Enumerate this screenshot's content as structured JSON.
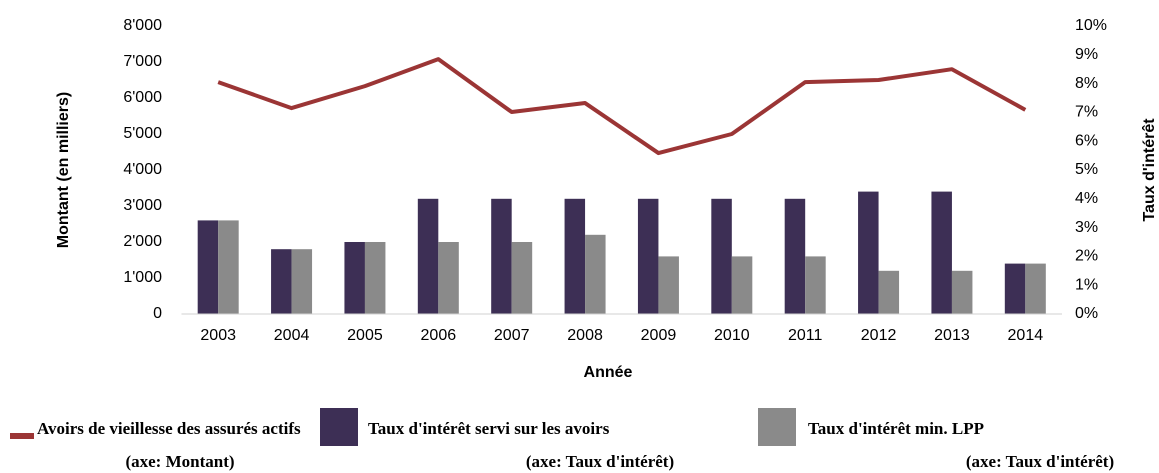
{
  "chart_data": {
    "type": "bar_line",
    "categories": [
      "2003",
      "2004",
      "2005",
      "2006",
      "2007",
      "2008",
      "2009",
      "2010",
      "2011",
      "2012",
      "2013",
      "2014"
    ],
    "series": [
      {
        "name": "Avoirs de vieillesse des assurés actifs",
        "legend_sub": "(axe: Montant)",
        "type": "line",
        "axis": "y",
        "color": "#9b3535",
        "values": [
          6440,
          5720,
          6330,
          7080,
          5610,
          5860,
          4470,
          5000,
          6440,
          6500,
          6800,
          5670
        ]
      },
      {
        "name": "Taux d'intérêt servi sur les avoirs",
        "legend_sub": "(axe: Taux d'intérêt)",
        "type": "bar",
        "axis": "y2",
        "color": "#3d2f55",
        "values": [
          3.25,
          2.25,
          2.5,
          4,
          4,
          4,
          4,
          4,
          4,
          4.25,
          4.25,
          1.75
        ]
      },
      {
        "name": "Taux d'intérêt min. LPP",
        "legend_sub": "(axe: Taux d'intérêt)",
        "type": "bar",
        "axis": "y2",
        "color": "#8a8a8a",
        "values": [
          3.25,
          2.25,
          2.5,
          2.5,
          2.5,
          2.75,
          2,
          2,
          2,
          1.5,
          1.5,
          1.75
        ]
      }
    ],
    "x_label": "Année",
    "y_label": "Montant  (en milliers)",
    "y2_label": "Taux d'intérêt",
    "ylim": [
      0,
      8000
    ],
    "yticks": [
      {
        "value": 0,
        "label": "0"
      },
      {
        "value": 1000,
        "label": "1'000"
      },
      {
        "value": 2000,
        "label": "2'000"
      },
      {
        "value": 3000,
        "label": "3'000"
      },
      {
        "value": 4000,
        "label": "4'000"
      },
      {
        "value": 5000,
        "label": "5'000"
      },
      {
        "value": 6000,
        "label": "6'000"
      },
      {
        "value": 7000,
        "label": "7'000"
      },
      {
        "value": 8000,
        "label": "8'000"
      }
    ],
    "y2lim": [
      0,
      10
    ],
    "y2ticks": [
      {
        "value": 0,
        "label": "0%"
      },
      {
        "value": 1,
        "label": "1%"
      },
      {
        "value": 2,
        "label": "2%"
      },
      {
        "value": 3,
        "label": "3%"
      },
      {
        "value": 4,
        "label": "4%"
      },
      {
        "value": 5,
        "label": "5%"
      },
      {
        "value": 6,
        "label": "6%"
      },
      {
        "value": 7,
        "label": "7%"
      },
      {
        "value": 8,
        "label": "8%"
      },
      {
        "value": 9,
        "label": "9%"
      },
      {
        "value": 10,
        "label": "10%"
      }
    ],
    "grid": false
  }
}
